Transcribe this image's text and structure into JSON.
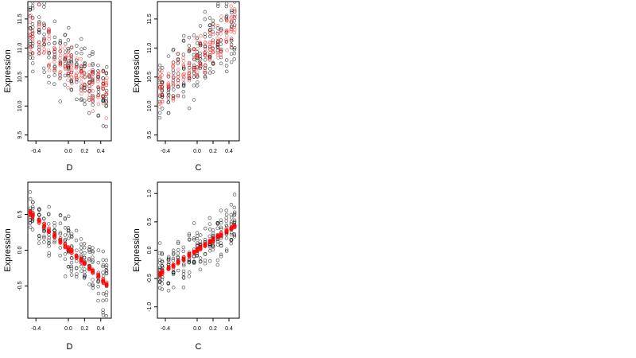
{
  "chart_data": [
    {
      "type": "scatter",
      "xlabel": "D",
      "ylabel": "Expression",
      "xticks": [
        "-0.4",
        "0.0",
        "0.2",
        "0.4"
      ],
      "yticks": [
        "9.5",
        "10.0",
        "10.5",
        "11.0",
        "11.5"
      ],
      "xlim": [
        -0.5,
        0.53
      ],
      "ylim": [
        9.4,
        11.8
      ],
      "series_colors": [
        "#000000",
        "#ff0000"
      ],
      "trend": [
        [
          -0.5,
          11.35
        ],
        [
          0.5,
          10.15
        ]
      ],
      "spread": 0.45,
      "red_spread": 0.3,
      "overlay_kind": "scatter"
    },
    {
      "type": "scatter",
      "xlabel": "C",
      "ylabel": "Expression",
      "xticks": [
        "-0.4",
        "0.0",
        "0.2",
        "0.4"
      ],
      "yticks": [
        "9.5",
        "10.0",
        "10.5",
        "11.0",
        "11.5"
      ],
      "xlim": [
        -0.5,
        0.53
      ],
      "ylim": [
        9.4,
        11.8
      ],
      "series_colors": [
        "#000000",
        "#ff0000"
      ],
      "trend": [
        [
          -0.5,
          10.2
        ],
        [
          0.5,
          11.4
        ]
      ],
      "spread": 0.45,
      "red_spread": 0.3,
      "overlay_kind": "scatter"
    },
    {
      "type": "scatter",
      "xlabel": "D",
      "ylabel": "Expression",
      "xticks": [
        "-0.4",
        "0.0",
        "0.2",
        "0.4"
      ],
      "yticks": [
        "-0.5",
        "0.0",
        "0.5"
      ],
      "xlim": [
        -0.5,
        0.53
      ],
      "ylim": [
        -0.95,
        0.95
      ],
      "series_colors": [
        "#000000",
        "#ff0000"
      ],
      "trend": [
        [
          -0.47,
          0.52
        ],
        [
          0.48,
          -0.48
        ]
      ],
      "spread": 0.28,
      "red_spread": 0.03,
      "overlay_kind": "fitted"
    },
    {
      "type": "scatter",
      "xlabel": "C",
      "ylabel": "Expression",
      "xticks": [
        "-0.4",
        "0.0",
        "0.2",
        "0.4"
      ],
      "yticks": [
        "-1.0",
        "-0.5",
        "0.0",
        "0.5",
        "1.0"
      ],
      "xlim": [
        -0.5,
        0.53
      ],
      "ylim": [
        -1.2,
        1.2
      ],
      "series_colors": [
        "#000000",
        "#ff0000"
      ],
      "trend": [
        [
          -0.47,
          -0.42
        ],
        [
          0.48,
          0.44
        ]
      ],
      "spread": 0.32,
      "red_spread": 0.03,
      "overlay_kind": "fitted"
    }
  ]
}
